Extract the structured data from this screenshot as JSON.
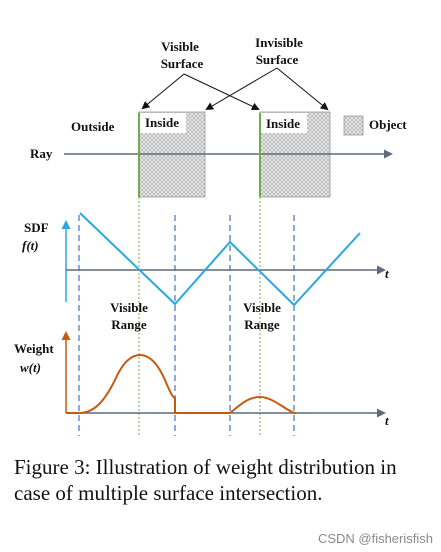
{
  "figure": {
    "labels": {
      "visible_surface_1": "Visible",
      "visible_surface_2": "Surface",
      "invisible_surface_1": "Invisible",
      "invisible_surface_2": "Surface",
      "outside": "Outside",
      "inside_a": "Inside",
      "inside_b": "Inside",
      "object": "Object",
      "ray": "Ray",
      "sdf": "SDF",
      "sdf_fn": "f(t)",
      "t_axis_sdf": "t",
      "visible_range_a_1": "Visible",
      "visible_range_a_2": "Range",
      "visible_range_b_1": "Visible",
      "visible_range_b_2": "Range",
      "weight": "Weight",
      "weight_fn": "w(t)",
      "t_axis_weight": "t"
    },
    "colors": {
      "ray_axis": "#5f6a7a",
      "sdf_line": "#2aa8e0",
      "sdf_axis": "#2aa8e0",
      "weight_line": "#c55a11",
      "surface_dotted": "#70ad47",
      "range_dashed": "#4472c4",
      "object_fill": "#cfcfcf"
    }
  },
  "caption": "Figure 3: Illustration of weight distribution in case of multiple surface intersection.",
  "watermark": "CSDN @fisherisfish"
}
